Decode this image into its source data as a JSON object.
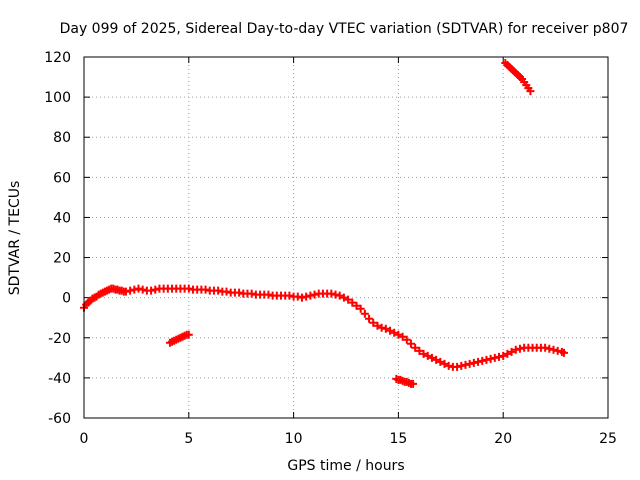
{
  "chart_data": {
    "type": "scatter",
    "title": "Day 099 of 2025, Sidereal Day-to-day VTEC variation (SDTVAR) for receiver p807",
    "xlabel": "GPS time / hours",
    "ylabel": "SDTVAR / TECUs",
    "xlim": [
      0,
      25
    ],
    "ylim": [
      -60,
      120
    ],
    "xticks": [
      0,
      5,
      10,
      15,
      20,
      25
    ],
    "yticks": [
      -60,
      -40,
      -20,
      0,
      20,
      40,
      60,
      80,
      100,
      120
    ],
    "grid": true,
    "marker": "plus",
    "color": "#ff0000",
    "series": [
      {
        "name": "main-track",
        "points": [
          [
            0.0,
            -5.0
          ],
          [
            0.1,
            -3.5
          ],
          [
            0.2,
            -2.5
          ],
          [
            0.3,
            -1.5
          ],
          [
            0.4,
            -0.5
          ],
          [
            0.5,
            0.0
          ],
          [
            0.6,
            0.5
          ],
          [
            0.7,
            1.5
          ],
          [
            0.8,
            2.0
          ],
          [
            0.9,
            2.5
          ],
          [
            1.0,
            3.0
          ],
          [
            1.1,
            3.5
          ],
          [
            1.2,
            4.0
          ],
          [
            1.3,
            4.5
          ],
          [
            1.4,
            4.5
          ],
          [
            1.5,
            4.0
          ],
          [
            1.6,
            4.0
          ],
          [
            1.7,
            3.5
          ],
          [
            1.8,
            3.5
          ],
          [
            1.9,
            3.0
          ],
          [
            2.0,
            3.0
          ],
          [
            2.2,
            3.5
          ],
          [
            2.4,
            4.0
          ],
          [
            2.6,
            4.5
          ],
          [
            2.8,
            4.0
          ],
          [
            3.0,
            3.5
          ],
          [
            3.2,
            3.5
          ],
          [
            3.4,
            4.0
          ],
          [
            3.6,
            4.5
          ],
          [
            3.8,
            4.5
          ],
          [
            4.0,
            4.5
          ],
          [
            4.2,
            4.5
          ],
          [
            4.4,
            4.5
          ],
          [
            4.6,
            4.5
          ],
          [
            4.8,
            4.5
          ],
          [
            5.0,
            4.5
          ],
          [
            5.2,
            4.0
          ],
          [
            5.4,
            4.0
          ],
          [
            5.6,
            4.0
          ],
          [
            5.8,
            4.0
          ],
          [
            6.0,
            3.5
          ],
          [
            6.2,
            3.5
          ],
          [
            6.4,
            3.5
          ],
          [
            6.6,
            3.0
          ],
          [
            6.8,
            3.0
          ],
          [
            7.0,
            2.5
          ],
          [
            7.2,
            2.5
          ],
          [
            7.4,
            2.5
          ],
          [
            7.6,
            2.0
          ],
          [
            7.8,
            2.0
          ],
          [
            8.0,
            2.0
          ],
          [
            8.2,
            1.5
          ],
          [
            8.4,
            1.5
          ],
          [
            8.6,
            1.5
          ],
          [
            8.8,
            1.5
          ],
          [
            9.0,
            1.0
          ],
          [
            9.2,
            1.0
          ],
          [
            9.4,
            1.0
          ],
          [
            9.6,
            1.0
          ],
          [
            9.8,
            1.0
          ],
          [
            10.0,
            0.5
          ],
          [
            10.2,
            0.5
          ],
          [
            10.4,
            0.0
          ],
          [
            10.6,
            0.5
          ],
          [
            10.8,
            1.0
          ],
          [
            11.0,
            1.5
          ],
          [
            11.2,
            2.0
          ],
          [
            11.4,
            2.0
          ],
          [
            11.6,
            2.0
          ],
          [
            11.8,
            2.0
          ],
          [
            12.0,
            1.5
          ],
          [
            12.2,
            1.0
          ],
          [
            12.4,
            0.0
          ],
          [
            12.6,
            -1.0
          ],
          [
            12.8,
            -2.5
          ],
          [
            13.0,
            -4.0
          ],
          [
            13.2,
            -5.5
          ],
          [
            13.4,
            -8.0
          ],
          [
            13.6,
            -10.5
          ],
          [
            13.8,
            -12.5
          ],
          [
            14.0,
            -14.0
          ],
          [
            14.2,
            -15.0
          ],
          [
            14.4,
            -15.5
          ],
          [
            14.6,
            -16.5
          ],
          [
            14.8,
            -17.5
          ],
          [
            15.0,
            -18.5
          ],
          [
            15.2,
            -19.5
          ],
          [
            15.4,
            -21.0
          ],
          [
            15.6,
            -23.0
          ],
          [
            15.8,
            -25.0
          ],
          [
            16.0,
            -26.5
          ],
          [
            16.2,
            -28.0
          ],
          [
            16.4,
            -29.0
          ],
          [
            16.6,
            -30.0
          ],
          [
            16.8,
            -31.0
          ],
          [
            17.0,
            -32.0
          ],
          [
            17.2,
            -33.0
          ],
          [
            17.4,
            -34.0
          ],
          [
            17.6,
            -34.5
          ],
          [
            17.8,
            -34.5
          ],
          [
            18.0,
            -34.0
          ],
          [
            18.2,
            -33.5
          ],
          [
            18.4,
            -33.0
          ],
          [
            18.6,
            -32.5
          ],
          [
            18.8,
            -32.0
          ],
          [
            19.0,
            -31.5
          ],
          [
            19.2,
            -31.0
          ],
          [
            19.4,
            -30.5
          ],
          [
            19.6,
            -30.0
          ],
          [
            19.8,
            -29.5
          ],
          [
            20.0,
            -29.0
          ],
          [
            20.2,
            -28.0
          ],
          [
            20.4,
            -27.0
          ],
          [
            20.6,
            -26.0
          ],
          [
            20.8,
            -25.5
          ],
          [
            21.0,
            -25.0
          ],
          [
            21.2,
            -25.0
          ],
          [
            21.4,
            -25.0
          ],
          [
            21.6,
            -25.0
          ],
          [
            21.8,
            -25.0
          ],
          [
            22.0,
            -25.0
          ],
          [
            22.2,
            -25.5
          ],
          [
            22.4,
            -26.0
          ],
          [
            22.6,
            -26.5
          ],
          [
            22.8,
            -27.0
          ],
          [
            22.9,
            -27.5
          ]
        ]
      },
      {
        "name": "segment-early-low",
        "points": [
          [
            4.1,
            -22.5
          ],
          [
            4.2,
            -22.0
          ],
          [
            4.3,
            -21.5
          ],
          [
            4.4,
            -21.0
          ],
          [
            4.5,
            -20.5
          ],
          [
            4.6,
            -20.0
          ],
          [
            4.7,
            -19.5
          ],
          [
            4.8,
            -19.0
          ],
          [
            4.9,
            -18.5
          ],
          [
            5.0,
            -18.5
          ]
        ]
      },
      {
        "name": "segment-mid-low",
        "points": [
          [
            14.9,
            -40.5
          ],
          [
            15.0,
            -41.0
          ],
          [
            15.1,
            -41.0
          ],
          [
            15.2,
            -41.5
          ],
          [
            15.3,
            -42.0
          ],
          [
            15.4,
            -42.0
          ],
          [
            15.5,
            -42.5
          ],
          [
            15.6,
            -43.0
          ],
          [
            15.7,
            -43.0
          ]
        ]
      },
      {
        "name": "segment-high",
        "points": [
          [
            20.1,
            117.0
          ],
          [
            20.2,
            116.0
          ],
          [
            20.3,
            115.0
          ],
          [
            20.4,
            114.0
          ],
          [
            20.5,
            113.0
          ],
          [
            20.6,
            112.0
          ],
          [
            20.7,
            111.0
          ],
          [
            20.8,
            110.0
          ],
          [
            20.9,
            109.0
          ],
          [
            21.0,
            107.5
          ],
          [
            21.1,
            106.0
          ],
          [
            21.2,
            104.5
          ],
          [
            21.3,
            103.0
          ]
        ]
      }
    ]
  }
}
